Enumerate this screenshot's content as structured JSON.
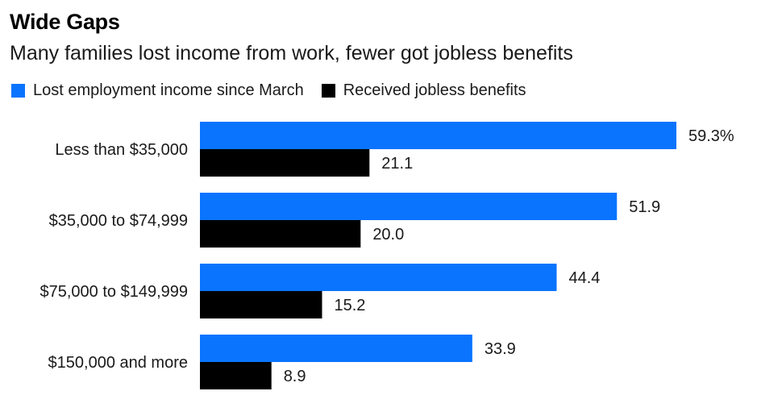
{
  "title": "Wide Gaps",
  "subtitle": "Many families lost income from work, fewer got jobless benefits",
  "colors": {
    "lost_income": "#0a74ff",
    "benefits": "#000000"
  },
  "chart_data": {
    "type": "bar",
    "orientation": "horizontal",
    "categories": [
      "Less than $35,000",
      "$35,000 to $74,999",
      "$75,000 to $149,999",
      "$150,000 and more"
    ],
    "series": [
      {
        "name": "Lost employment income since March",
        "values": [
          59.3,
          51.9,
          44.4,
          33.9
        ],
        "labels": [
          "59.3%",
          "51.9",
          "44.4",
          "33.9"
        ]
      },
      {
        "name": "Received jobless benefits",
        "values": [
          21.1,
          20.0,
          15.2,
          8.9
        ],
        "labels": [
          "21.1",
          "20.0",
          "15.2",
          "8.9"
        ]
      }
    ],
    "xlim": [
      0,
      60
    ],
    "legend": "top-left",
    "grid": false
  }
}
